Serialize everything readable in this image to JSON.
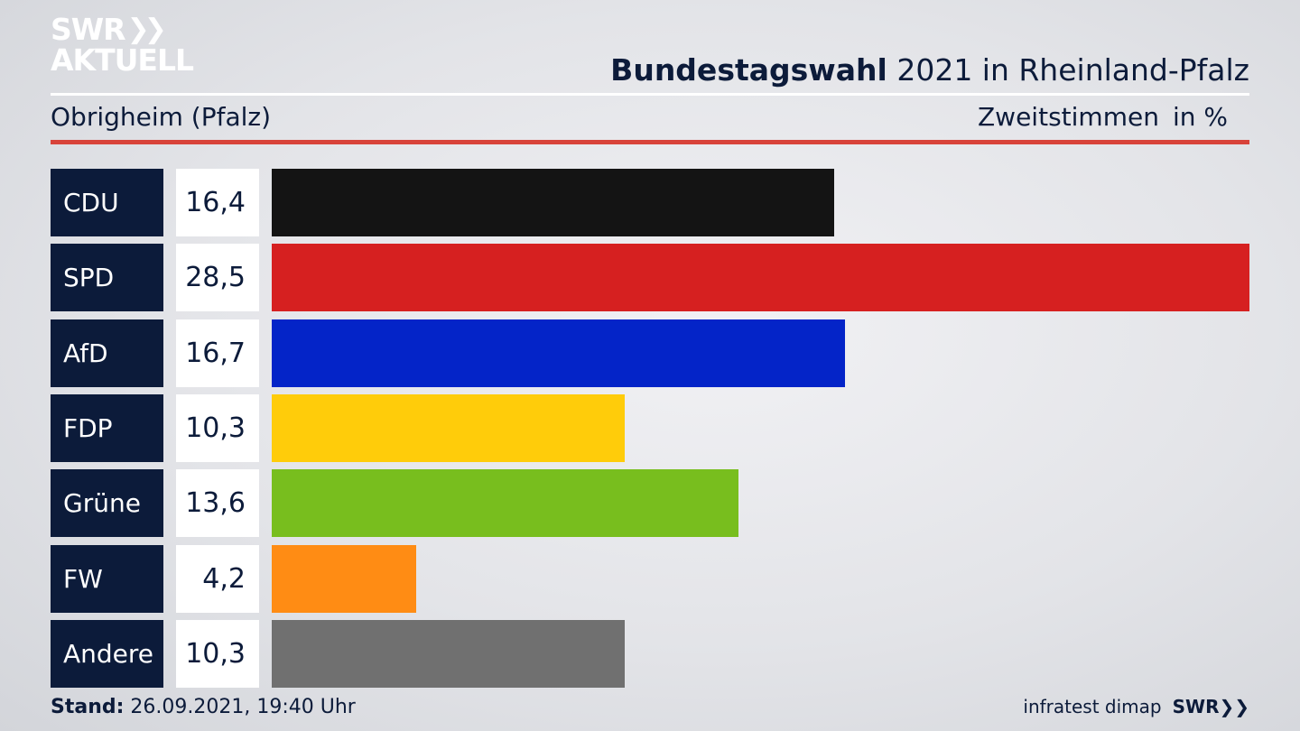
{
  "brand": {
    "logo_line1": "SWR",
    "logo_line2": "AKTUELL",
    "footer_logo": "SWR",
    "source": "infratest dimap"
  },
  "header": {
    "title_bold": "Bundestagswahl",
    "title_rest": "2021 in Rheinland-Pfalz",
    "subtitle": "Obrigheim (Pfalz)",
    "measure": "Zweitstimmen",
    "unit": "in %"
  },
  "footer": {
    "stand_label": "Stand:",
    "stand_value": "26.09.2021, 19:40 Uhr"
  },
  "colors": {
    "navy": "#0c1b3a",
    "accent_red_rule": "#d8433a"
  },
  "chart_data": {
    "type": "bar",
    "orientation": "horizontal",
    "title": "Bundestagswahl 2021 in Rheinland-Pfalz",
    "subtitle": "Obrigheim (Pfalz)",
    "ylabel": "Zweitstimmen in %",
    "categories": [
      "CDU",
      "SPD",
      "AfD",
      "FDP",
      "Grüne",
      "FW",
      "Andere"
    ],
    "values": [
      16.4,
      28.5,
      16.7,
      10.3,
      13.6,
      4.2,
      10.3
    ],
    "value_labels": [
      "16,4",
      "28,5",
      "16,7",
      "10,3",
      "13,6",
      "4,2",
      "10,3"
    ],
    "bar_colors": [
      "#141414",
      "#d62020",
      "#0424c8",
      "#ffcc0a",
      "#78be1e",
      "#ff8c14",
      "#707070"
    ],
    "xlim": [
      0,
      28.5
    ]
  }
}
